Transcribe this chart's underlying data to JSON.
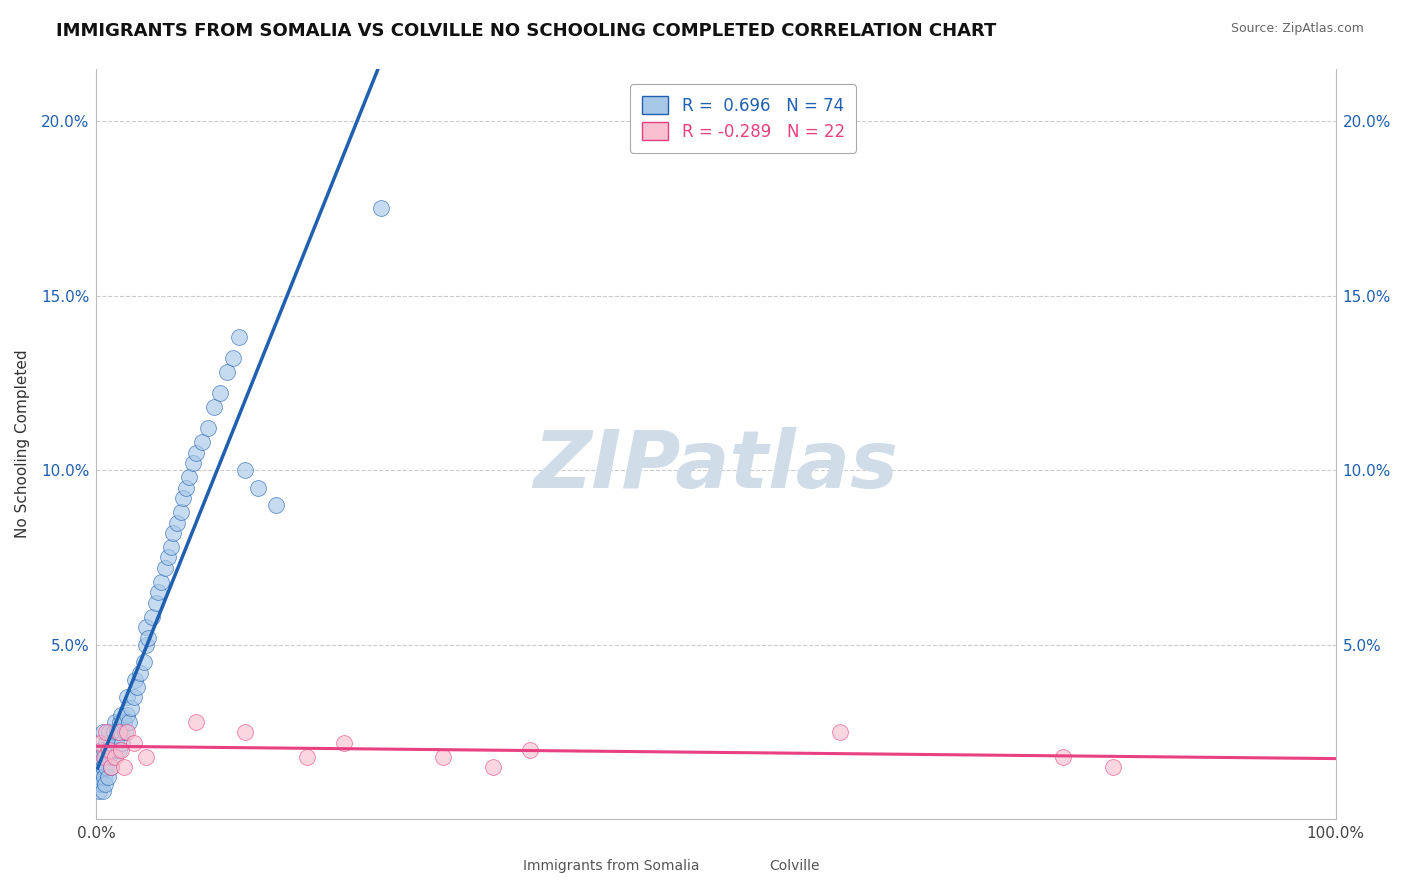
{
  "title": "IMMIGRANTS FROM SOMALIA VS COLVILLE NO SCHOOLING COMPLETED CORRELATION CHART",
  "source": "Source: ZipAtlas.com",
  "ylabel": "No Schooling Completed",
  "ylim": [
    0,
    0.215
  ],
  "xlim": [
    0,
    1.0
  ],
  "ytick_vals": [
    0.05,
    0.1,
    0.15,
    0.2
  ],
  "ytick_labels": [
    "5.0%",
    "10.0%",
    "15.0%",
    "20.0%"
  ],
  "legend_text1": "R =  0.696   N = 74",
  "legend_text2": "R = -0.289   N = 22",
  "blue_fill": "#a8c8e8",
  "pink_fill": "#f8c0d0",
  "blue_line": "#2060b0",
  "pink_line": "#e84080",
  "watermark_color": "#d0dce8",
  "grid_color": "#cccccc",
  "somalia_x": [
    0.001,
    0.002,
    0.002,
    0.003,
    0.003,
    0.004,
    0.004,
    0.005,
    0.005,
    0.005,
    0.006,
    0.006,
    0.007,
    0.007,
    0.008,
    0.008,
    0.009,
    0.009,
    0.01,
    0.01,
    0.011,
    0.012,
    0.012,
    0.013,
    0.014,
    0.015,
    0.015,
    0.016,
    0.017,
    0.018,
    0.019,
    0.02,
    0.02,
    0.021,
    0.022,
    0.023,
    0.025,
    0.025,
    0.026,
    0.028,
    0.03,
    0.031,
    0.033,
    0.035,
    0.038,
    0.04,
    0.04,
    0.042,
    0.045,
    0.048,
    0.05,
    0.052,
    0.055,
    0.058,
    0.06,
    0.062,
    0.065,
    0.068,
    0.07,
    0.072,
    0.075,
    0.078,
    0.08,
    0.085,
    0.09,
    0.095,
    0.1,
    0.105,
    0.11,
    0.115,
    0.12,
    0.13,
    0.145,
    0.23
  ],
  "somalia_y": [
    0.01,
    0.008,
    0.015,
    0.012,
    0.018,
    0.01,
    0.02,
    0.008,
    0.015,
    0.025,
    0.012,
    0.02,
    0.01,
    0.018,
    0.015,
    0.022,
    0.012,
    0.02,
    0.018,
    0.025,
    0.02,
    0.015,
    0.022,
    0.018,
    0.025,
    0.02,
    0.028,
    0.022,
    0.025,
    0.02,
    0.028,
    0.025,
    0.03,
    0.022,
    0.028,
    0.025,
    0.03,
    0.035,
    0.028,
    0.032,
    0.035,
    0.04,
    0.038,
    0.042,
    0.045,
    0.05,
    0.055,
    0.052,
    0.058,
    0.062,
    0.065,
    0.068,
    0.072,
    0.075,
    0.078,
    0.082,
    0.085,
    0.088,
    0.092,
    0.095,
    0.098,
    0.102,
    0.105,
    0.108,
    0.112,
    0.118,
    0.122,
    0.128,
    0.132,
    0.138,
    0.1,
    0.095,
    0.09,
    0.175
  ],
  "colville_x": [
    0.003,
    0.006,
    0.008,
    0.01,
    0.012,
    0.015,
    0.018,
    0.02,
    0.022,
    0.025,
    0.03,
    0.04,
    0.08,
    0.12,
    0.17,
    0.2,
    0.28,
    0.32,
    0.35,
    0.6,
    0.78,
    0.82
  ],
  "colville_y": [
    0.022,
    0.018,
    0.025,
    0.02,
    0.015,
    0.018,
    0.025,
    0.02,
    0.015,
    0.025,
    0.022,
    0.018,
    0.028,
    0.025,
    0.018,
    0.022,
    0.018,
    0.015,
    0.02,
    0.025,
    0.018,
    0.015
  ]
}
